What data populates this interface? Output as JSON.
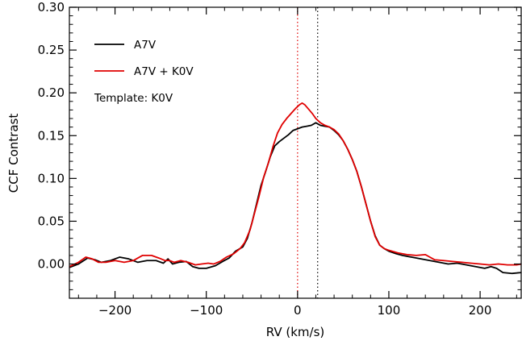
{
  "chart_data": {
    "type": "line",
    "title": "",
    "xlabel": "RV (km/s)",
    "ylabel": "CCF Contrast",
    "xlim": [
      -250,
      245
    ],
    "ylim": [
      -0.04,
      0.3
    ],
    "xticks": [
      -200,
      -100,
      0,
      100,
      200
    ],
    "xtick_labels": [
      "−200",
      "−100",
      "0",
      "100",
      "200"
    ],
    "yticks": [
      0.0,
      0.05,
      0.1,
      0.15,
      0.2,
      0.25,
      0.3
    ],
    "ytick_labels": [
      "0.00",
      "0.05",
      "0.10",
      "0.15",
      "0.20",
      "0.25",
      "0.30"
    ],
    "grid": false,
    "legend_position": "top-left",
    "annotation": "Template: K0V",
    "vlines": [
      {
        "x": 0,
        "color": "#e00000",
        "style": "dotted"
      },
      {
        "x": 22,
        "color": "#000000",
        "style": "dotted"
      }
    ],
    "series": [
      {
        "name": "A7V",
        "color": "#000000",
        "points": [
          [
            -250,
            -0.004
          ],
          [
            -240,
            0.0
          ],
          [
            -230,
            0.007
          ],
          [
            -222,
            0.005
          ],
          [
            -215,
            0.002
          ],
          [
            -205,
            0.004
          ],
          [
            -195,
            0.008
          ],
          [
            -185,
            0.006
          ],
          [
            -175,
            0.002
          ],
          [
            -165,
            0.004
          ],
          [
            -155,
            0.004
          ],
          [
            -147,
            0.001
          ],
          [
            -142,
            0.006
          ],
          [
            -137,
            0.0
          ],
          [
            -130,
            0.002
          ],
          [
            -122,
            0.003
          ],
          [
            -115,
            -0.003
          ],
          [
            -108,
            -0.005
          ],
          [
            -100,
            -0.005
          ],
          [
            -90,
            -0.002
          ],
          [
            -82,
            0.003
          ],
          [
            -75,
            0.007
          ],
          [
            -68,
            0.015
          ],
          [
            -60,
            0.02
          ],
          [
            -55,
            0.03
          ],
          [
            -50,
            0.048
          ],
          [
            -45,
            0.07
          ],
          [
            -40,
            0.092
          ],
          [
            -35,
            0.108
          ],
          [
            -30,
            0.125
          ],
          [
            -25,
            0.138
          ],
          [
            -20,
            0.143
          ],
          [
            -15,
            0.147
          ],
          [
            -10,
            0.151
          ],
          [
            -5,
            0.156
          ],
          [
            0,
            0.158
          ],
          [
            5,
            0.16
          ],
          [
            10,
            0.161
          ],
          [
            15,
            0.162
          ],
          [
            20,
            0.165
          ],
          [
            25,
            0.162
          ],
          [
            30,
            0.161
          ],
          [
            35,
            0.16
          ],
          [
            40,
            0.156
          ],
          [
            45,
            0.151
          ],
          [
            50,
            0.144
          ],
          [
            55,
            0.134
          ],
          [
            60,
            0.122
          ],
          [
            65,
            0.108
          ],
          [
            70,
            0.09
          ],
          [
            75,
            0.07
          ],
          [
            80,
            0.05
          ],
          [
            85,
            0.033
          ],
          [
            90,
            0.022
          ],
          [
            95,
            0.018
          ],
          [
            100,
            0.015
          ],
          [
            108,
            0.012
          ],
          [
            115,
            0.01
          ],
          [
            125,
            0.008
          ],
          [
            135,
            0.006
          ],
          [
            145,
            0.004
          ],
          [
            155,
            0.002
          ],
          [
            165,
            0.0
          ],
          [
            175,
            0.001
          ],
          [
            185,
            -0.001
          ],
          [
            195,
            -0.003
          ],
          [
            205,
            -0.005
          ],
          [
            212,
            -0.003
          ],
          [
            218,
            -0.005
          ],
          [
            225,
            -0.01
          ],
          [
            235,
            -0.011
          ],
          [
            245,
            -0.01
          ]
        ]
      },
      {
        "name": "A7V + K0V",
        "color": "#e00000",
        "points": [
          [
            -250,
            -0.003
          ],
          [
            -240,
            0.002
          ],
          [
            -232,
            0.008
          ],
          [
            -225,
            0.006
          ],
          [
            -218,
            0.002
          ],
          [
            -210,
            0.002
          ],
          [
            -200,
            0.004
          ],
          [
            -190,
            0.002
          ],
          [
            -180,
            0.004
          ],
          [
            -170,
            0.01
          ],
          [
            -160,
            0.01
          ],
          [
            -152,
            0.007
          ],
          [
            -145,
            0.004
          ],
          [
            -140,
            0.004
          ],
          [
            -135,
            0.002
          ],
          [
            -128,
            0.004
          ],
          [
            -120,
            0.002
          ],
          [
            -112,
            -0.001
          ],
          [
            -105,
            0.0
          ],
          [
            -98,
            0.001
          ],
          [
            -92,
            0.0
          ],
          [
            -85,
            0.003
          ],
          [
            -78,
            0.008
          ],
          [
            -70,
            0.012
          ],
          [
            -63,
            0.018
          ],
          [
            -58,
            0.025
          ],
          [
            -52,
            0.04
          ],
          [
            -47,
            0.06
          ],
          [
            -42,
            0.08
          ],
          [
            -37,
            0.102
          ],
          [
            -32,
            0.118
          ],
          [
            -27,
            0.137
          ],
          [
            -22,
            0.153
          ],
          [
            -17,
            0.163
          ],
          [
            -12,
            0.17
          ],
          [
            -7,
            0.176
          ],
          [
            -2,
            0.182
          ],
          [
            2,
            0.186
          ],
          [
            5,
            0.188
          ],
          [
            8,
            0.186
          ],
          [
            12,
            0.181
          ],
          [
            16,
            0.176
          ],
          [
            20,
            0.17
          ],
          [
            25,
            0.165
          ],
          [
            30,
            0.162
          ],
          [
            35,
            0.16
          ],
          [
            40,
            0.157
          ],
          [
            45,
            0.152
          ],
          [
            50,
            0.144
          ],
          [
            55,
            0.134
          ],
          [
            60,
            0.122
          ],
          [
            65,
            0.108
          ],
          [
            70,
            0.09
          ],
          [
            75,
            0.07
          ],
          [
            80,
            0.05
          ],
          [
            85,
            0.032
          ],
          [
            90,
            0.022
          ],
          [
            95,
            0.018
          ],
          [
            100,
            0.016
          ],
          [
            110,
            0.013
          ],
          [
            120,
            0.011
          ],
          [
            130,
            0.01
          ],
          [
            140,
            0.011
          ],
          [
            150,
            0.005
          ],
          [
            160,
            0.004
          ],
          [
            170,
            0.003
          ],
          [
            180,
            0.002
          ],
          [
            190,
            0.001
          ],
          [
            200,
            0.0
          ],
          [
            210,
            -0.001
          ],
          [
            220,
            0.0
          ],
          [
            230,
            -0.001
          ],
          [
            240,
            -0.001
          ],
          [
            245,
            0.0
          ]
        ]
      }
    ]
  }
}
